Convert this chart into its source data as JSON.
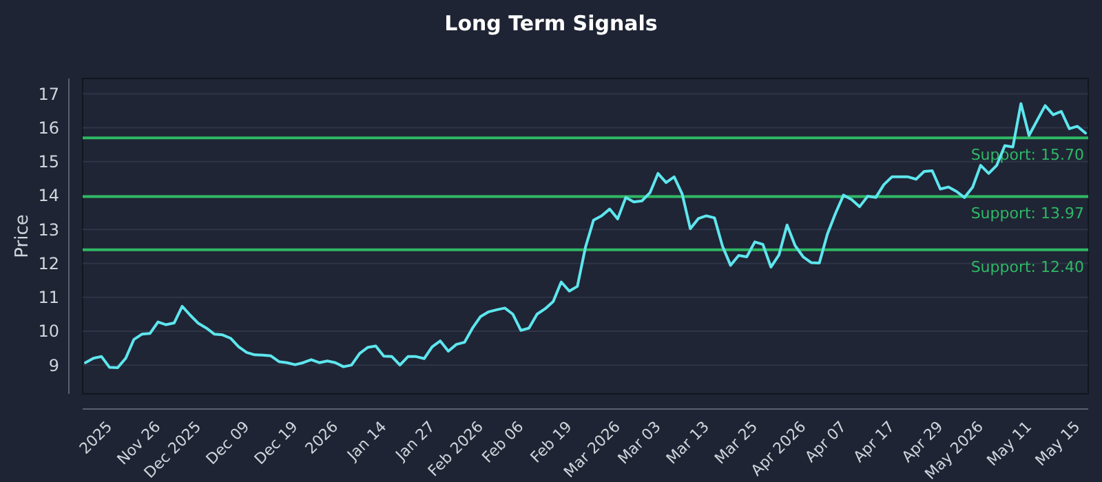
{
  "chart_data": {
    "type": "line",
    "title": "Long Term Signals",
    "ylabel": "Price",
    "categories": [
      null,
      null,
      null,
      "2025",
      null,
      null,
      null,
      null,
      null,
      "Nov 26",
      null,
      null,
      null,
      null,
      "Dec 2025",
      null,
      null,
      null,
      null,
      null,
      "Dec 09",
      null,
      null,
      null,
      null,
      null,
      "Dec 19",
      null,
      null,
      null,
      null,
      "2026",
      null,
      null,
      null,
      null,
      null,
      "Jan 14",
      null,
      null,
      null,
      null,
      null,
      "Jan 27",
      null,
      null,
      null,
      null,
      null,
      "Feb 2026",
      null,
      null,
      null,
      null,
      "Feb 06",
      null,
      null,
      null,
      null,
      null,
      "Feb 19",
      null,
      null,
      null,
      null,
      null,
      "Mar 2026",
      null,
      null,
      null,
      null,
      "Mar 03",
      null,
      null,
      null,
      null,
      null,
      "Mar 13",
      null,
      null,
      null,
      null,
      null,
      "Mar 25",
      null,
      null,
      null,
      null,
      null,
      "Apr 2026",
      null,
      null,
      null,
      null,
      "Apr 07",
      null,
      null,
      null,
      null,
      null,
      "Apr 17",
      null,
      null,
      null,
      null,
      null,
      "Apr 29",
      null,
      null,
      null,
      null,
      "May 2026",
      null,
      null,
      null,
      null,
      null,
      "May 11",
      null,
      null,
      null,
      null,
      null,
      "May 15",
      null
    ],
    "series": [
      {
        "color": "#5ee6ee",
        "values": [
          9.07,
          9.2,
          9.25,
          8.93,
          8.92,
          9.2,
          9.75,
          9.91,
          9.93,
          10.27,
          10.19,
          10.24,
          10.73,
          10.47,
          10.23,
          10.09,
          9.91,
          9.89,
          9.79,
          9.54,
          9.37,
          9.3,
          9.29,
          9.27,
          9.1,
          9.07,
          9.01,
          9.07,
          9.16,
          9.07,
          9.12,
          9.07,
          8.95,
          9.0,
          9.34,
          9.52,
          9.56,
          9.26,
          9.25,
          9.0,
          9.25,
          9.25,
          9.19,
          9.54,
          9.71,
          9.41,
          9.61,
          9.67,
          10.09,
          10.43,
          10.57,
          10.63,
          10.68,
          10.5,
          10.02,
          10.09,
          10.5,
          10.66,
          10.87,
          11.45,
          11.18,
          11.32,
          12.47,
          13.27,
          13.4,
          13.6,
          13.31,
          13.94,
          13.81,
          13.84,
          14.08,
          14.65,
          14.38,
          14.55,
          14.04,
          13.02,
          13.32,
          13.4,
          13.34,
          12.5,
          11.94,
          12.23,
          12.19,
          12.63,
          12.56,
          11.89,
          12.25,
          13.13,
          12.52,
          12.19,
          12.02,
          12.01,
          12.86,
          13.47,
          14.01,
          13.88,
          13.67,
          13.98,
          13.94,
          14.32,
          14.55,
          14.55,
          14.55,
          14.48,
          14.71,
          14.73,
          14.19,
          14.25,
          14.12,
          13.94,
          14.24,
          14.89,
          14.65,
          14.89,
          15.47,
          15.43,
          16.71,
          15.77,
          16.21,
          16.65,
          16.38,
          16.48,
          15.97,
          16.04,
          15.84
        ]
      }
    ],
    "ylim": [
      8.15,
      17.45
    ],
    "yticks": [
      9,
      10,
      11,
      12,
      13,
      14,
      15,
      16,
      17
    ],
    "grid": "y",
    "ref_lines": [
      {
        "axis": "y",
        "value": 15.7,
        "label": "Support: 15.70",
        "color": "#2fb865"
      },
      {
        "axis": "y",
        "value": 13.97,
        "label": "Support: 13.97",
        "color": "#2fb865"
      },
      {
        "axis": "y",
        "value": 12.4,
        "label": "Support: 12.40",
        "color": "#2fb865"
      }
    ]
  }
}
